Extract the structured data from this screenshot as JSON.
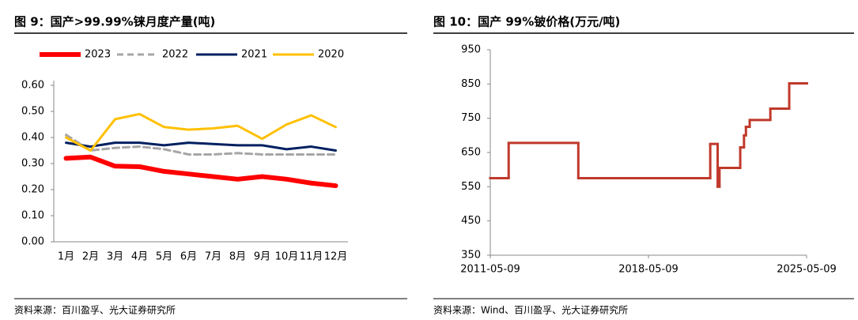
{
  "chart_data": [
    {
      "type": "line",
      "title": "图 9：国产>99.99%铼月度产量(吨)",
      "categories": [
        "1月",
        "2月",
        "3月",
        "4月",
        "5月",
        "6月",
        "7月",
        "8月",
        "9月",
        "10月",
        "11月",
        "12月"
      ],
      "series": [
        {
          "name": "2023",
          "color": "#ff0000",
          "linewidth": 6,
          "dashed": false,
          "values": [
            0.32,
            0.325,
            0.29,
            0.288,
            0.27,
            0.26,
            0.25,
            0.24,
            0.25,
            0.24,
            0.225,
            0.215
          ]
        },
        {
          "name": "2022",
          "color": "#a6a6a6",
          "linewidth": 3,
          "dashed": true,
          "values": [
            0.41,
            0.35,
            0.36,
            0.365,
            0.355,
            0.335,
            0.335,
            0.34,
            0.335,
            0.335,
            0.335,
            0.335
          ]
        },
        {
          "name": "2021",
          "color": "#002060",
          "linewidth": 3,
          "dashed": false,
          "values": [
            0.38,
            0.365,
            0.38,
            0.38,
            0.37,
            0.38,
            0.375,
            0.37,
            0.37,
            0.355,
            0.365,
            0.35
          ]
        },
        {
          "name": "2020",
          "color": "#ffc000",
          "linewidth": 3,
          "dashed": false,
          "values": [
            0.4,
            0.35,
            0.47,
            0.49,
            0.44,
            0.43,
            0.435,
            0.445,
            0.395,
            0.45,
            0.485,
            0.44
          ]
        }
      ],
      "ylim": [
        0,
        0.6
      ],
      "yticks": [
        {
          "value": 0,
          "label": "0.00"
        },
        {
          "value": 0.1,
          "label": "0.10"
        },
        {
          "value": 0.2,
          "label": "0.20"
        },
        {
          "value": 0.3,
          "label": "0.30"
        },
        {
          "value": 0.4,
          "label": "0.40"
        },
        {
          "value": 0.5,
          "label": "0.50"
        },
        {
          "value": 0.6,
          "label": "0.60"
        }
      ],
      "legend": "top",
      "source": "资料来源：百川盈孚、光大证券研究所"
    },
    {
      "type": "line",
      "step": "post",
      "title": "图 10：国产 99%铍价格(万元/吨)",
      "x": [
        "2011-05-09",
        "2012-03-01",
        "2015-04-01",
        "2021-02-01",
        "2021-06-01",
        "2021-07-01",
        "2022-06-01",
        "2022-08-01",
        "2022-09-01",
        "2022-11-01",
        "2023-10-01",
        "2024-08-01",
        "2025-05-09"
      ],
      "values": [
        575,
        678,
        575,
        675,
        550,
        605,
        665,
        700,
        725,
        745,
        778,
        852,
        852
      ],
      "color": "#c0392b",
      "xlim": [
        "2011-05-09",
        "2025-05-09"
      ],
      "xticks": [
        "2011-05-09",
        "2018-05-09",
        "2025-05-09"
      ],
      "ylim": [
        350,
        950
      ],
      "yticks": [
        350,
        450,
        550,
        650,
        750,
        850,
        950
      ],
      "source": "资料来源：Wind、百川盈孚、光大证券研究所"
    }
  ]
}
